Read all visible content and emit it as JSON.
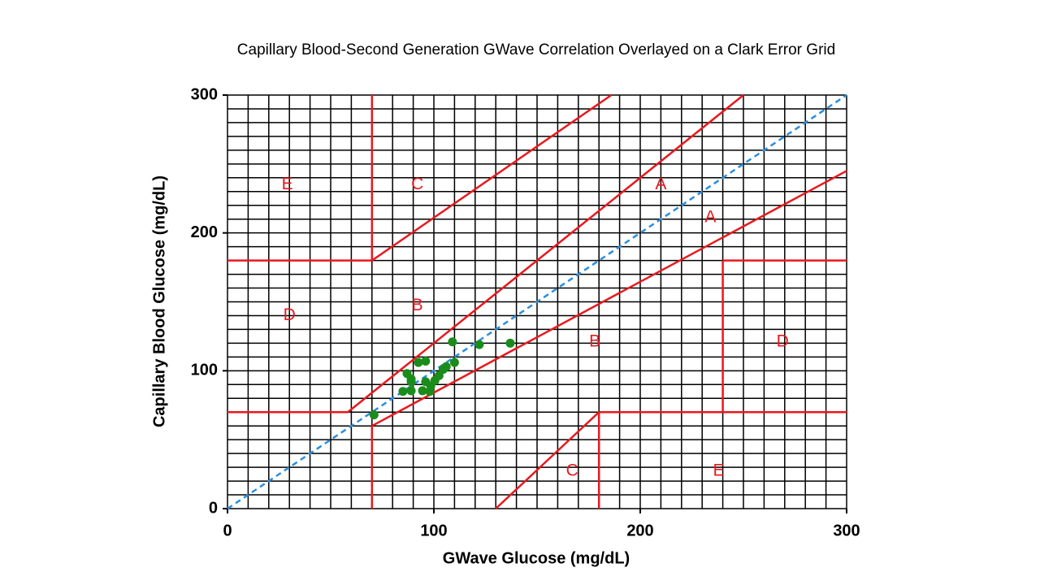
{
  "chart_data": {
    "type": "scatter",
    "title": "Capillary Blood-Second Generation GWave Correlation Overlayed on a  Clark Error Grid",
    "x_label": "GWave  Glucose (mg/dL)",
    "y_label": "Capillary Blood Glucose (mg/dL)",
    "xlim": [
      0,
      300
    ],
    "ylim": [
      0,
      300
    ],
    "xticks": [
      0,
      100,
      200,
      300
    ],
    "yticks": [
      0,
      100,
      200,
      300
    ],
    "grid": true,
    "grid_step": 10,
    "series": [
      {
        "color": "#1a8c1a",
        "x": [
          71,
          87,
          89,
          89,
          92.5,
          96,
          85,
          89,
          94.5,
          96,
          98,
          98.5,
          100.5,
          102.5,
          104.5,
          106,
          109,
          110,
          122,
          137
        ],
        "values": [
          68,
          98,
          94,
          92,
          106,
          107,
          85,
          85.5,
          85.5,
          92,
          85,
          89,
          93,
          96.5,
          101,
          103,
          121,
          106,
          119,
          120
        ]
      }
    ],
    "reference_line": {
      "color": "#2a8ee0",
      "points": [
        [
          0,
          0
        ],
        [
          300,
          300
        ]
      ]
    },
    "zone_color": "#e8191e",
    "zone_lines": [
      [
        [
          58.3,
          70
        ],
        [
          250,
          300
        ]
      ],
      [
        [
          70,
          60
        ],
        [
          300,
          245
        ]
      ],
      [
        [
          70,
          180
        ],
        [
          186,
          300
        ]
      ],
      [
        [
          70,
          180
        ],
        [
          70,
          300
        ]
      ],
      [
        [
          70,
          0
        ],
        [
          70,
          60
        ]
      ],
      [
        [
          0,
          180
        ],
        [
          70,
          180
        ]
      ],
      [
        [
          0,
          70
        ],
        [
          58.3,
          70
        ]
      ],
      [
        [
          240,
          70
        ],
        [
          240,
          180
        ]
      ],
      [
        [
          240,
          180
        ],
        [
          300,
          180
        ]
      ],
      [
        [
          180,
          70
        ],
        [
          300,
          70
        ]
      ],
      [
        [
          180,
          0
        ],
        [
          180,
          70
        ]
      ],
      [
        [
          130,
          0
        ],
        [
          180,
          70
        ]
      ]
    ],
    "zone_labels": [
      {
        "text": "E",
        "x": 29,
        "y": 235
      },
      {
        "text": "C",
        "x": 92,
        "y": 235
      },
      {
        "text": "A",
        "x": 210,
        "y": 235
      },
      {
        "text": "A",
        "x": 234,
        "y": 211
      },
      {
        "text": "B",
        "x": 92,
        "y": 147
      },
      {
        "text": "D",
        "x": 30,
        "y": 140
      },
      {
        "text": "B",
        "x": 178,
        "y": 121
      },
      {
        "text": "D",
        "x": 269,
        "y": 121
      },
      {
        "text": "C",
        "x": 167,
        "y": 27
      },
      {
        "text": "E",
        "x": 238,
        "y": 27
      }
    ]
  }
}
